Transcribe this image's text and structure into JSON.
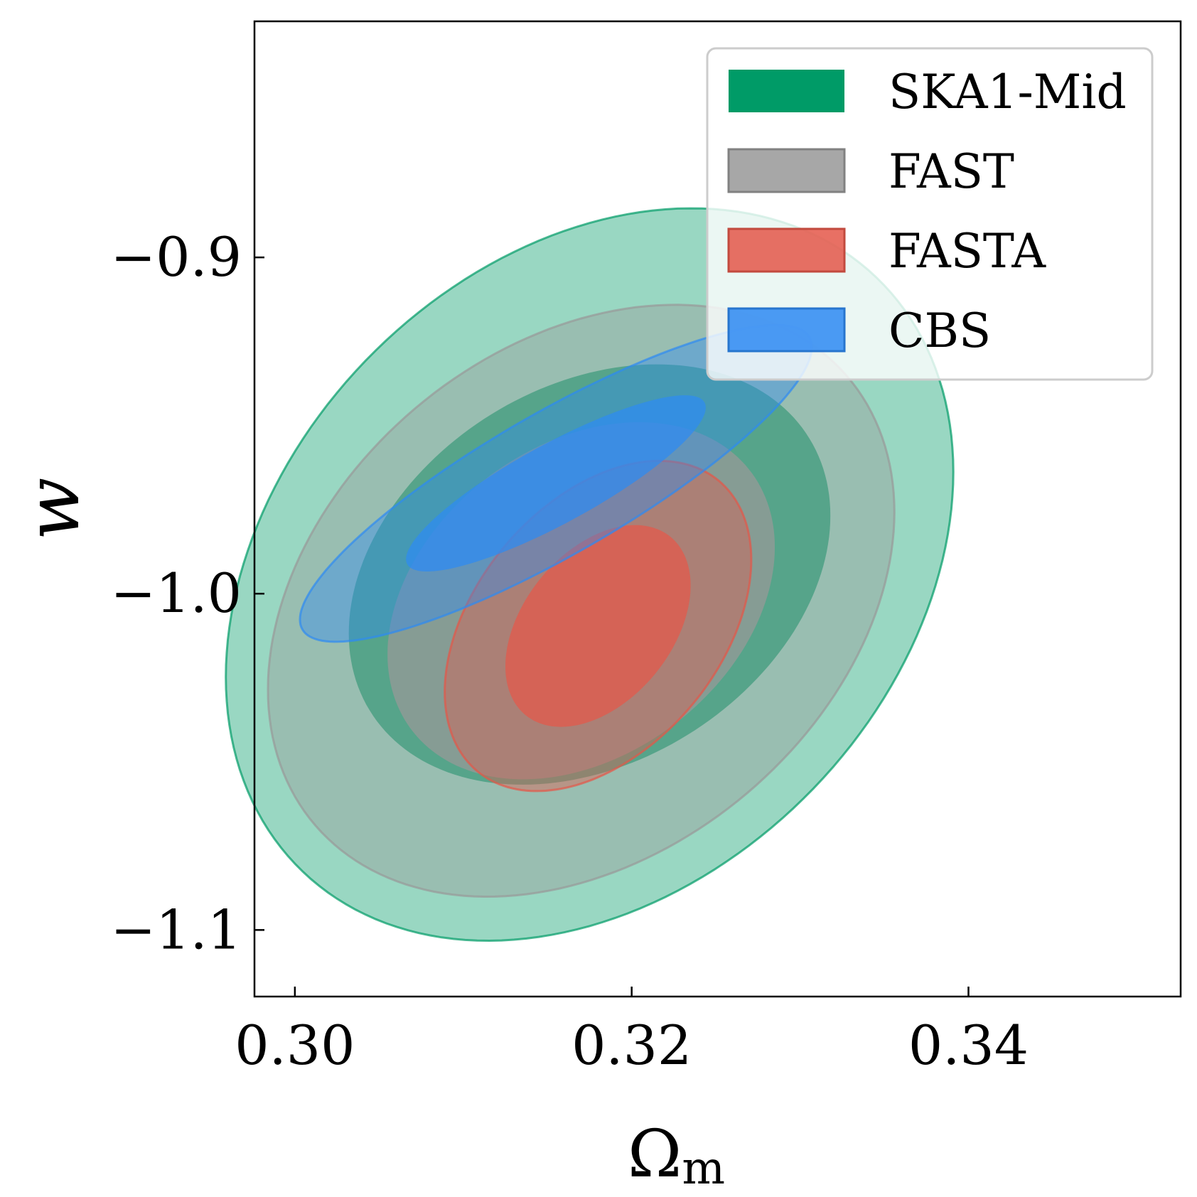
{
  "chart_data": {
    "type": "contour",
    "xlabel": "Ω",
    "xlabel_subscript": "m",
    "ylabel": "w",
    "xlim": [
      0.2976,
      0.3526
    ],
    "ylim": [
      -1.1198,
      -0.8298
    ],
    "xticks": [
      {
        "value": 0.3,
        "label": "0.30"
      },
      {
        "value": 0.32,
        "label": "0.32"
      },
      {
        "value": 0.34,
        "label": "0.34"
      }
    ],
    "yticks": [
      {
        "value": -0.9,
        "label": "−0.9"
      },
      {
        "value": -1.0,
        "label": "−1.0"
      },
      {
        "value": -1.1,
        "label": "−1.1"
      }
    ],
    "legend_position": "top-right",
    "series": [
      {
        "name": "SKA1-Mid",
        "color": "#009b67",
        "center": [
          0.3175,
          -0.9943
        ],
        "levels": [
          {
            "sigma": 2,
            "sx": 0.0216,
            "sy": 0.1089,
            "rho": 0.28
          },
          {
            "sigma": 1,
            "sx": 0.0143,
            "sy": 0.0625,
            "rho": 0.28
          }
        ]
      },
      {
        "name": "FAST",
        "color": "#989898",
        "center": [
          0.317,
          -1.0021
        ],
        "levels": [
          {
            "sigma": 2,
            "sx": 0.0186,
            "sy": 0.088,
            "rho": 0.3
          },
          {
            "sigma": 1,
            "sx": 0.0115,
            "sy": 0.0531,
            "rho": 0.3
          }
        ]
      },
      {
        "name": "FASTA",
        "color": "#e45749",
        "center": [
          0.318,
          -1.0096
        ],
        "levels": [
          {
            "sigma": 2,
            "sx": 0.0091,
            "sy": 0.0491,
            "rho": 0.4
          },
          {
            "sigma": 1,
            "sx": 0.0055,
            "sy": 0.03,
            "rho": 0.4
          }
        ]
      },
      {
        "name": "CBS",
        "color": "#2e8af2",
        "center": [
          0.3155,
          -0.9672
        ],
        "levels": [
          {
            "sigma": 2,
            "sx": 0.0152,
            "sy": 0.0471,
            "rho": 0.86
          },
          {
            "sigma": 1,
            "sx": 0.0089,
            "sy": 0.0262,
            "rho": 0.86
          }
        ]
      }
    ]
  }
}
